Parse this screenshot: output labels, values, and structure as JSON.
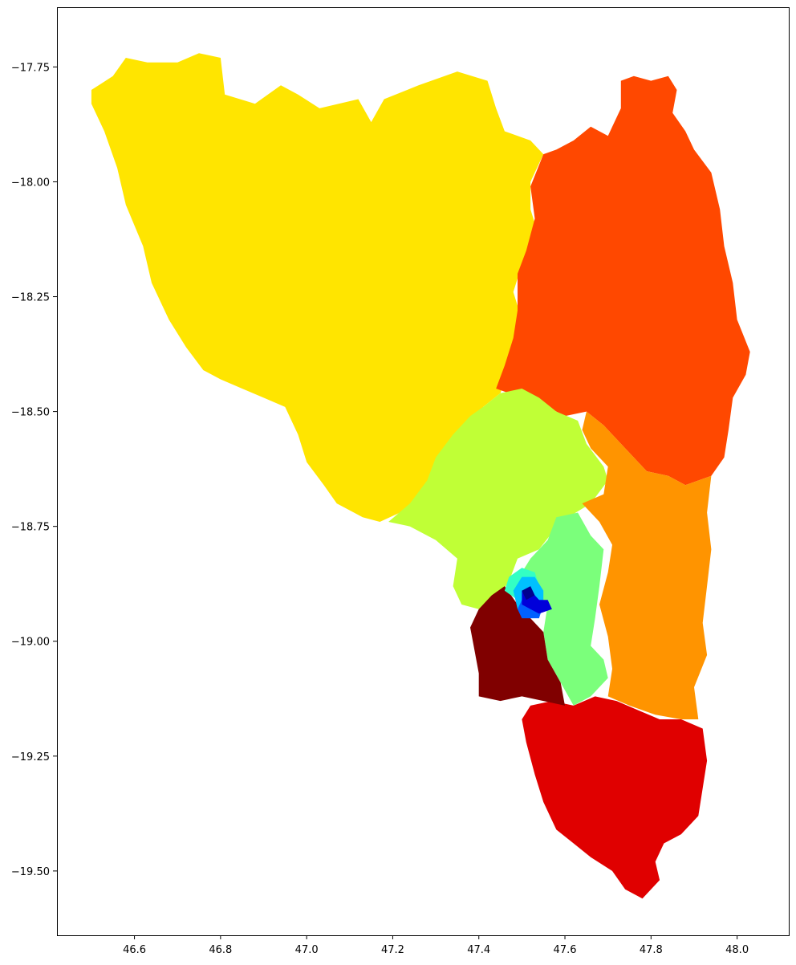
{
  "chart_data": {
    "type": "choropleth",
    "title": "",
    "xlabel": "",
    "ylabel": "",
    "xlim": [
      46.42,
      48.12
    ],
    "ylim": [
      -19.64,
      -17.62
    ],
    "grid": false,
    "legend": "none",
    "x_ticks": [
      "46.6",
      "46.8",
      "47.0",
      "47.2",
      "47.4",
      "47.6",
      "47.8",
      "48.0"
    ],
    "x_tick_values": [
      46.6,
      46.8,
      47.0,
      47.2,
      47.4,
      47.6,
      47.8,
      48.0
    ],
    "y_ticks": [
      "−17.75",
      "−18.00",
      "−18.25",
      "−18.50",
      "−18.75",
      "−19.00",
      "−19.25",
      "−19.50"
    ],
    "y_tick_values": [
      -17.75,
      -18.0,
      -18.25,
      -18.5,
      -18.75,
      -19.0,
      -19.25,
      -19.5
    ],
    "colormap": "jet",
    "regions": [
      {
        "id": "region-northwest",
        "color": "#ffe500",
        "coords": [
          [
            46.5,
            -17.8
          ],
          [
            46.55,
            -17.77
          ],
          [
            46.58,
            -17.73
          ],
          [
            46.63,
            -17.74
          ],
          [
            46.7,
            -17.74
          ],
          [
            46.75,
            -17.72
          ],
          [
            46.8,
            -17.73
          ],
          [
            46.81,
            -17.81
          ],
          [
            46.88,
            -17.83
          ],
          [
            46.94,
            -17.79
          ],
          [
            46.98,
            -17.81
          ],
          [
            47.03,
            -17.84
          ],
          [
            47.12,
            -17.82
          ],
          [
            47.15,
            -17.87
          ],
          [
            47.18,
            -17.82
          ],
          [
            47.26,
            -17.79
          ],
          [
            47.35,
            -17.76
          ],
          [
            47.42,
            -17.78
          ],
          [
            47.44,
            -17.84
          ],
          [
            47.46,
            -17.89
          ],
          [
            47.52,
            -17.91
          ],
          [
            47.55,
            -17.94
          ],
          [
            47.52,
            -18.0
          ],
          [
            47.52,
            -18.06
          ],
          [
            47.54,
            -18.12
          ],
          [
            47.5,
            -18.18
          ],
          [
            47.48,
            -18.24
          ],
          [
            47.5,
            -18.3
          ],
          [
            47.48,
            -18.36
          ],
          [
            47.47,
            -18.41
          ],
          [
            47.45,
            -18.46
          ],
          [
            47.41,
            -18.49
          ],
          [
            47.4,
            -18.55
          ],
          [
            47.37,
            -18.6
          ],
          [
            47.34,
            -18.64
          ],
          [
            47.29,
            -18.68
          ],
          [
            47.24,
            -18.71
          ],
          [
            47.17,
            -18.74
          ],
          [
            47.13,
            -18.73
          ],
          [
            47.07,
            -18.7
          ],
          [
            47.04,
            -18.66
          ],
          [
            47.0,
            -18.61
          ],
          [
            46.98,
            -18.55
          ],
          [
            46.95,
            -18.49
          ],
          [
            46.9,
            -18.47
          ],
          [
            46.85,
            -18.45
          ],
          [
            46.8,
            -18.43
          ],
          [
            46.76,
            -18.41
          ],
          [
            46.72,
            -18.36
          ],
          [
            46.68,
            -18.3
          ],
          [
            46.64,
            -18.22
          ],
          [
            46.62,
            -18.14
          ],
          [
            46.58,
            -18.05
          ],
          [
            46.56,
            -17.97
          ],
          [
            46.53,
            -17.89
          ],
          [
            46.5,
            -17.83
          ]
        ]
      },
      {
        "id": "region-northeast",
        "color": "#ff4800",
        "coords": [
          [
            47.55,
            -17.94
          ],
          [
            47.58,
            -17.93
          ],
          [
            47.62,
            -17.91
          ],
          [
            47.66,
            -17.88
          ],
          [
            47.7,
            -17.9
          ],
          [
            47.73,
            -17.84
          ],
          [
            47.73,
            -17.78
          ],
          [
            47.76,
            -17.77
          ],
          [
            47.8,
            -17.78
          ],
          [
            47.84,
            -17.77
          ],
          [
            47.86,
            -17.8
          ],
          [
            47.85,
            -17.85
          ],
          [
            47.88,
            -17.89
          ],
          [
            47.9,
            -17.93
          ],
          [
            47.94,
            -17.98
          ],
          [
            47.96,
            -18.06
          ],
          [
            47.97,
            -18.14
          ],
          [
            47.99,
            -18.22
          ],
          [
            48.0,
            -18.3
          ],
          [
            48.03,
            -18.37
          ],
          [
            48.02,
            -18.42
          ],
          [
            47.99,
            -18.47
          ],
          [
            47.98,
            -18.54
          ],
          [
            47.97,
            -18.6
          ],
          [
            47.94,
            -18.64
          ],
          [
            47.88,
            -18.66
          ],
          [
            47.84,
            -18.64
          ],
          [
            47.79,
            -18.63
          ],
          [
            47.74,
            -18.58
          ],
          [
            47.69,
            -18.53
          ],
          [
            47.65,
            -18.5
          ],
          [
            47.6,
            -18.51
          ],
          [
            47.56,
            -18.49
          ],
          [
            47.52,
            -18.47
          ],
          [
            47.47,
            -18.46
          ],
          [
            47.44,
            -18.45
          ],
          [
            47.46,
            -18.4
          ],
          [
            47.48,
            -18.34
          ],
          [
            47.49,
            -18.28
          ],
          [
            47.49,
            -18.2
          ],
          [
            47.51,
            -18.15
          ],
          [
            47.53,
            -18.08
          ],
          [
            47.52,
            -18.01
          ]
        ]
      },
      {
        "id": "region-center-north",
        "color": "#c0ff36",
        "coords": [
          [
            47.41,
            -18.49
          ],
          [
            47.45,
            -18.46
          ],
          [
            47.5,
            -18.45
          ],
          [
            47.54,
            -18.47
          ],
          [
            47.58,
            -18.5
          ],
          [
            47.63,
            -18.52
          ],
          [
            47.65,
            -18.57
          ],
          [
            47.69,
            -18.62
          ],
          [
            47.7,
            -18.65
          ],
          [
            47.66,
            -18.7
          ],
          [
            47.59,
            -18.74
          ],
          [
            47.54,
            -18.8
          ],
          [
            47.49,
            -18.82
          ],
          [
            47.47,
            -18.87
          ],
          [
            47.44,
            -18.91
          ],
          [
            47.4,
            -18.93
          ],
          [
            47.36,
            -18.92
          ],
          [
            47.34,
            -18.88
          ],
          [
            47.35,
            -18.82
          ],
          [
            47.3,
            -18.78
          ],
          [
            47.24,
            -18.75
          ],
          [
            47.19,
            -18.74
          ],
          [
            47.24,
            -18.7
          ],
          [
            47.28,
            -18.65
          ],
          [
            47.3,
            -18.6
          ],
          [
            47.34,
            -18.55
          ],
          [
            47.38,
            -18.51
          ]
        ]
      },
      {
        "id": "region-east-central",
        "color": "#ff9400",
        "coords": [
          [
            47.65,
            -18.5
          ],
          [
            47.69,
            -18.53
          ],
          [
            47.74,
            -18.58
          ],
          [
            47.79,
            -18.63
          ],
          [
            47.84,
            -18.64
          ],
          [
            47.88,
            -18.66
          ],
          [
            47.94,
            -18.64
          ],
          [
            47.93,
            -18.72
          ],
          [
            47.94,
            -18.8
          ],
          [
            47.93,
            -18.88
          ],
          [
            47.92,
            -18.96
          ],
          [
            47.93,
            -19.03
          ],
          [
            47.9,
            -19.1
          ],
          [
            47.91,
            -19.17
          ],
          [
            47.87,
            -19.17
          ],
          [
            47.81,
            -19.16
          ],
          [
            47.75,
            -19.14
          ],
          [
            47.7,
            -19.12
          ],
          [
            47.71,
            -19.06
          ],
          [
            47.7,
            -18.99
          ],
          [
            47.68,
            -18.92
          ],
          [
            47.7,
            -18.85
          ],
          [
            47.71,
            -18.79
          ],
          [
            47.68,
            -18.74
          ],
          [
            47.64,
            -18.7
          ],
          [
            47.69,
            -18.68
          ],
          [
            47.7,
            -18.62
          ],
          [
            47.66,
            -18.58
          ],
          [
            47.64,
            -18.54
          ]
        ]
      },
      {
        "id": "region-center-east",
        "color": "#7bff7b",
        "coords": [
          [
            47.58,
            -18.73
          ],
          [
            47.63,
            -18.72
          ],
          [
            47.66,
            -18.77
          ],
          [
            47.69,
            -18.8
          ],
          [
            47.68,
            -18.88
          ],
          [
            47.67,
            -18.95
          ],
          [
            47.66,
            -19.01
          ],
          [
            47.69,
            -19.04
          ],
          [
            47.7,
            -19.08
          ],
          [
            47.66,
            -19.12
          ],
          [
            47.62,
            -19.14
          ],
          [
            47.59,
            -19.09
          ],
          [
            47.56,
            -19.04
          ],
          [
            47.55,
            -18.98
          ],
          [
            47.56,
            -18.92
          ],
          [
            47.51,
            -18.88
          ],
          [
            47.5,
            -18.85
          ],
          [
            47.52,
            -18.82
          ],
          [
            47.56,
            -18.78
          ]
        ]
      },
      {
        "id": "region-south",
        "color": "#e00000",
        "coords": [
          [
            47.52,
            -19.14
          ],
          [
            47.57,
            -19.13
          ],
          [
            47.62,
            -19.14
          ],
          [
            47.67,
            -19.12
          ],
          [
            47.72,
            -19.13
          ],
          [
            47.77,
            -19.15
          ],
          [
            47.82,
            -19.17
          ],
          [
            47.87,
            -19.17
          ],
          [
            47.92,
            -19.19
          ],
          [
            47.93,
            -19.26
          ],
          [
            47.92,
            -19.32
          ],
          [
            47.91,
            -19.38
          ],
          [
            47.87,
            -19.42
          ],
          [
            47.83,
            -19.44
          ],
          [
            47.81,
            -19.48
          ],
          [
            47.82,
            -19.52
          ],
          [
            47.78,
            -19.56
          ],
          [
            47.74,
            -19.54
          ],
          [
            47.71,
            -19.5
          ],
          [
            47.66,
            -19.47
          ],
          [
            47.62,
            -19.44
          ],
          [
            47.58,
            -19.41
          ],
          [
            47.55,
            -19.35
          ],
          [
            47.53,
            -19.29
          ],
          [
            47.51,
            -19.22
          ],
          [
            47.5,
            -19.17
          ]
        ]
      },
      {
        "id": "region-southwest",
        "color": "#800000",
        "coords": [
          [
            47.43,
            -18.9
          ],
          [
            47.46,
            -18.88
          ],
          [
            47.49,
            -18.92
          ],
          [
            47.52,
            -18.95
          ],
          [
            47.55,
            -18.98
          ],
          [
            47.56,
            -19.04
          ],
          [
            47.59,
            -19.09
          ],
          [
            47.6,
            -19.14
          ],
          [
            47.55,
            -19.13
          ],
          [
            47.5,
            -19.12
          ],
          [
            47.45,
            -19.13
          ],
          [
            47.4,
            -19.12
          ],
          [
            47.4,
            -19.07
          ],
          [
            47.39,
            -19.02
          ],
          [
            47.38,
            -18.97
          ],
          [
            47.4,
            -18.93
          ]
        ]
      },
      {
        "id": "region-city-outer",
        "color": "#33ffc4",
        "coords": [
          [
            47.47,
            -18.86
          ],
          [
            47.5,
            -18.84
          ],
          [
            47.53,
            -18.85
          ],
          [
            47.54,
            -18.88
          ],
          [
            47.52,
            -18.92
          ],
          [
            47.49,
            -18.91
          ],
          [
            47.46,
            -18.89
          ]
        ]
      },
      {
        "id": "region-city-ring",
        "color": "#00c0ff",
        "coords": [
          [
            47.5,
            -18.86
          ],
          [
            47.53,
            -18.86
          ],
          [
            47.55,
            -18.89
          ],
          [
            47.55,
            -18.93
          ],
          [
            47.52,
            -18.94
          ],
          [
            47.49,
            -18.93
          ],
          [
            47.48,
            -18.89
          ]
        ]
      },
      {
        "id": "region-city-mid",
        "color": "#0060ff",
        "coords": [
          [
            47.5,
            -18.91
          ],
          [
            47.53,
            -18.9
          ],
          [
            47.55,
            -18.92
          ],
          [
            47.54,
            -18.95
          ],
          [
            47.5,
            -18.95
          ],
          [
            47.49,
            -18.93
          ]
        ]
      },
      {
        "id": "region-city-core",
        "color": "#0000da",
        "coords": [
          [
            47.5,
            -18.89
          ],
          [
            47.52,
            -18.89
          ],
          [
            47.54,
            -18.91
          ],
          [
            47.56,
            -18.91
          ],
          [
            47.57,
            -18.93
          ],
          [
            47.54,
            -18.94
          ],
          [
            47.52,
            -18.93
          ],
          [
            47.5,
            -18.92
          ]
        ]
      },
      {
        "id": "region-city-center",
        "color": "#00008f",
        "coords": [
          [
            47.5,
            -18.89
          ],
          [
            47.52,
            -18.88
          ],
          [
            47.53,
            -18.9
          ],
          [
            47.51,
            -18.91
          ]
        ]
      }
    ]
  }
}
